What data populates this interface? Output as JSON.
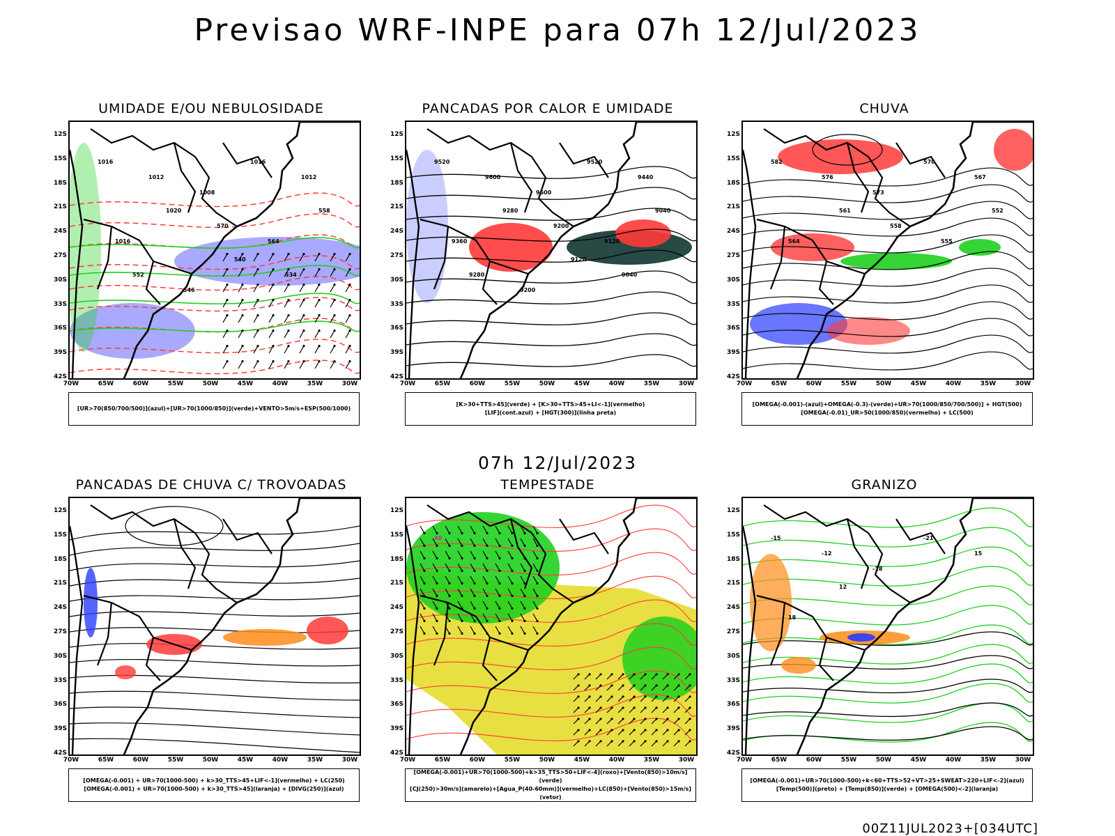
{
  "title": "Previsao WRF-INPE  para 07h 12/Jul/2023",
  "mid_title": "07h 12/Jul/2023",
  "footer": "00Z11JUL2023+[034UTC]",
  "axes": {
    "lat": [
      "12S",
      "15S",
      "18S",
      "21S",
      "24S",
      "27S",
      "30S",
      "33S",
      "36S",
      "39S",
      "42S"
    ],
    "lon": [
      "70W",
      "65W",
      "60W",
      "55W",
      "50W",
      "45W",
      "40W",
      "35W",
      "30W"
    ]
  },
  "panels": [
    {
      "title": "UMIDADE E/OU NEBULOSIDADE",
      "legend": [
        "[UR>70(850/700/500)](azul)+[UR>70(1000/850)](verde)+VENTO>5m/s+ESP(500/1000)"
      ],
      "contour_labels": [
        "1016",
        "1012",
        "1008",
        "1016",
        "1012",
        "1016",
        "1020",
        "570",
        "564",
        "558",
        "552",
        "546",
        "540",
        "534"
      ]
    },
    {
      "title": "PANCADAS POR CALOR E UMIDADE",
      "legend": [
        "[K>30+TTS>45](verde) + [K>30+TTS>45+LI<-1](vermelho)",
        "[LIF](cont.azul) + [HGT(300)](linha preta)"
      ],
      "contour_labels": [
        "9520",
        "9600",
        "9600",
        "9520",
        "9440",
        "9360",
        "9280",
        "9200",
        "9120",
        "9040",
        "9280",
        "9200",
        "9120",
        "9040"
      ]
    },
    {
      "title": "CHUVA",
      "legend": [
        "[OMEGA(-0.001)-(azul)+OMEGA(-0.3)-(verde)+UR>70(1000/850/700/500)] + HGT(500)",
        "[OMEGA(-0.01)_UR>50(1000/850)(vermelho) + LC(500)"
      ],
      "contour_labels": [
        "582",
        "576",
        "573",
        "570",
        "567",
        "564",
        "561",
        "558",
        "555",
        "552"
      ]
    },
    {
      "title": "PANCADAS DE CHUVA C/ TROVOADAS",
      "legend": [
        "[OMEGA(-0.001) + UR>70(1000-500) + k>30_TTS>45+LIF<-1](vermelho) + LC(250)",
        "[OMEGA(-0.001) + UR>70(1000-500) + k>30_TTS>45](laranja) + [DIVG(250)](azul)"
      ],
      "contour_labels": []
    },
    {
      "title": "TEMPESTADE",
      "legend": [
        "[OMEGA(-0.001)+UR>70(1000-500)+k>35_TTS>50+LIF<-4](roxo)+[Vento(850)>10m/s](verde)",
        "[CJ(250)>30m/s](amarelo)+[Agua_P(40-60mm)](vermelho)+LC(850)+[Vento(850)>15m/s](vetor)"
      ],
      "contour_labels": [
        "40"
      ]
    },
    {
      "title": "GRANIZO",
      "legend": [
        "[OMEGA(-0.001)+UR>70(1000-500)+k<60+TTS>52+VT>25+SWEAT>220+LIF<-2](azul)",
        "[Temp(500)](preto) + [Temp(850)](verde) + [OMEGA(500)<-2](laranja)"
      ],
      "contour_labels": [
        "-15",
        "-12",
        "-18",
        "-21",
        "15",
        "18",
        "12"
      ]
    }
  ],
  "colors": {
    "blue": "#2a3cff",
    "green": "#1fd01f",
    "red": "#ff3a3a",
    "orange": "#ff8c1a",
    "yellow": "#e6dc2e",
    "lavender": "#8c8cff",
    "darkgreen": "#1c3f3a"
  }
}
